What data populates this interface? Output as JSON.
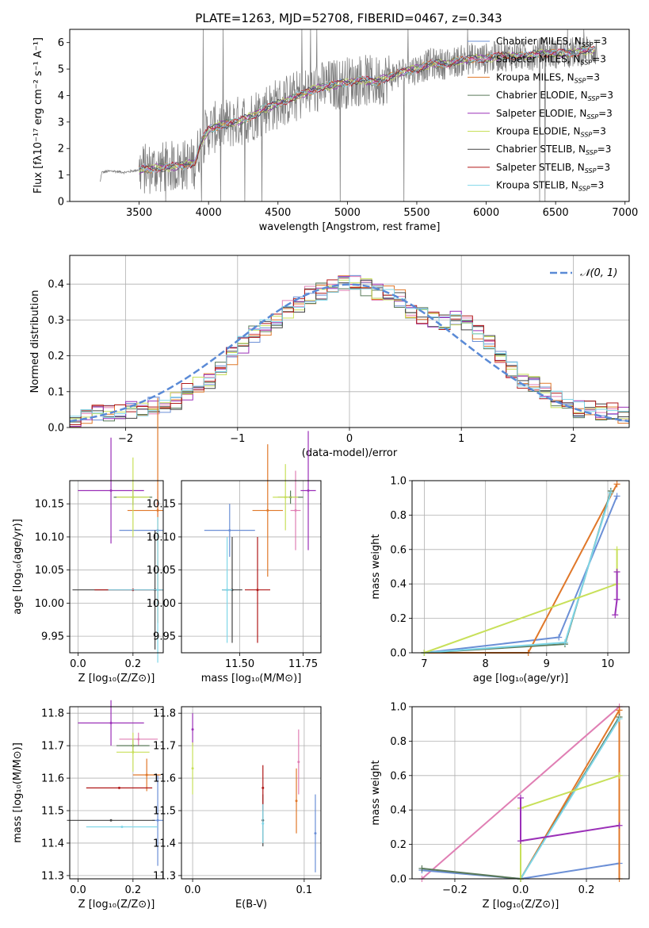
{
  "colors": {
    "Chabrier MILES": "#6b8fd6",
    "Salpeter MILES": "#e07fb4",
    "Kroupa MILES": "#e0782a",
    "Chabrier ELODIE": "#5a7a5a",
    "Salpeter ELODIE": "#9b30b8",
    "Kroupa ELODIE": "#c8e05a",
    "Chabrier STELIB": "#444444",
    "Salpeter STELIB": "#b01818",
    "Kroupa STELIB": "#7fd6e8",
    "data": "#808080",
    "normal": "#5a8ad6"
  },
  "chart_data": [
    {
      "type": "line",
      "title": "PLATE=1263, MJD=52708, FIBERID=0467, z=0.343",
      "xlabel": "wavelength [Angstrom, rest frame]",
      "ylabel": "Flux [fλ10⁻¹⁷ erg cm⁻² s⁻¹ A⁻¹]",
      "xlim": [
        3000,
        7030
      ],
      "ylim": [
        0,
        6.5
      ],
      "xticks": [
        "3500",
        "4000",
        "4500",
        "5000",
        "5500",
        "6000",
        "6500",
        "7000"
      ],
      "yticks": [
        "0",
        "1",
        "2",
        "3",
        "4",
        "5",
        "6"
      ],
      "legend": "top-right",
      "series": [
        {
          "name": "Chabrier MILES, N",
          "sub": "SSP",
          "eq": "=3"
        },
        {
          "name": "Salpeter MILES, N",
          "sub": "SSP",
          "eq": "=3"
        },
        {
          "name": "Kroupa MILES, N",
          "sub": "SSP",
          "eq": "=3"
        },
        {
          "name": "Chabrier ELODIE, N",
          "sub": "SSP",
          "eq": "=3"
        },
        {
          "name": "Salpeter ELODIE, N",
          "sub": "SSP",
          "eq": "=3"
        },
        {
          "name": "Kroupa ELODIE, N",
          "sub": "SSP",
          "eq": "=3"
        },
        {
          "name": "Chabrier STELIB, N",
          "sub": "SSP",
          "eq": "=3"
        },
        {
          "name": "Salpeter STELIB, N",
          "sub": "SSP",
          "eq": "=3"
        },
        {
          "name": "Kroupa STELIB, N",
          "sub": "SSP",
          "eq": "=3"
        }
      ],
      "model_points": [
        [
          3200,
          0
        ],
        [
          3230,
          1.1
        ],
        [
          3300,
          1.15
        ],
        [
          3400,
          1.1
        ],
        [
          3500,
          1.2
        ],
        [
          3600,
          1.25
        ],
        [
          3700,
          1.3
        ],
        [
          3800,
          1.35
        ],
        [
          3900,
          1.45
        ],
        [
          3950,
          2.3
        ],
        [
          4000,
          2.7
        ],
        [
          4100,
          2.9
        ],
        [
          4200,
          3.0
        ],
        [
          4300,
          3.2
        ],
        [
          4400,
          3.5
        ],
        [
          4500,
          3.7
        ],
        [
          4600,
          3.9
        ],
        [
          4700,
          4.1
        ],
        [
          4800,
          4.3
        ],
        [
          4900,
          4.4
        ],
        [
          5000,
          4.5
        ],
        [
          5100,
          4.6
        ],
        [
          5200,
          4.5
        ],
        [
          5300,
          4.7
        ],
        [
          5400,
          4.9
        ],
        [
          5500,
          5.0
        ],
        [
          5600,
          5.2
        ],
        [
          5700,
          5.2
        ],
        [
          5800,
          5.3
        ],
        [
          5900,
          5.4
        ],
        [
          6000,
          5.4
        ],
        [
          6100,
          5.5
        ],
        [
          6200,
          5.5
        ],
        [
          6300,
          5.5
        ],
        [
          6400,
          5.6
        ],
        [
          6500,
          5.6
        ],
        [
          6600,
          5.6
        ],
        [
          6700,
          5.7
        ],
        [
          6780,
          5.7
        ]
      ],
      "data_range": [
        3220,
        6800
      ]
    },
    {
      "type": "line",
      "xlabel": "(data-model)/error",
      "ylabel": "Normed distribution",
      "xlim": [
        -2.5,
        2.5
      ],
      "ylim": [
        0,
        0.48
      ],
      "xticks": [
        "−2",
        "−1",
        "0",
        "1",
        "2"
      ],
      "yticks": [
        "0.0",
        "0.1",
        "0.2",
        "0.3",
        "0.4"
      ],
      "legend": "top-right",
      "legend_label": "𝒩(0, 1)",
      "bins": [
        -2.5,
        -2.4,
        -2.3,
        -2.2,
        -2.1,
        -2.0,
        -1.9,
        -1.8,
        -1.7,
        -1.6,
        -1.5,
        -1.4,
        -1.3,
        -1.2,
        -1.1,
        -1.0,
        -0.9,
        -0.8,
        -0.7,
        -0.6,
        -0.5,
        -0.4,
        -0.3,
        -0.2,
        -0.1,
        0.0,
        0.1,
        0.2,
        0.3,
        0.4,
        0.5,
        0.6,
        0.7,
        0.8,
        0.9,
        1.0,
        1.1,
        1.2,
        1.3,
        1.4,
        1.5,
        1.6,
        1.7,
        1.8,
        1.9,
        2.0,
        2.1,
        2.2,
        2.3,
        2.4,
        2.5
      ],
      "hist_values": [
        0.025,
        0.03,
        0.04,
        0.04,
        0.045,
        0.05,
        0.055,
        0.06,
        0.065,
        0.075,
        0.1,
        0.12,
        0.13,
        0.17,
        0.2,
        0.23,
        0.26,
        0.28,
        0.3,
        0.33,
        0.34,
        0.37,
        0.38,
        0.39,
        0.4,
        0.4,
        0.39,
        0.38,
        0.37,
        0.36,
        0.33,
        0.31,
        0.3,
        0.29,
        0.3,
        0.29,
        0.26,
        0.24,
        0.2,
        0.16,
        0.13,
        0.12,
        0.1,
        0.08,
        0.07,
        0.05,
        0.05,
        0.045,
        0.045,
        0.035
      ]
    },
    {
      "type": "scatter",
      "xlabel": "Z [log₁₀(Z/Z⊙)]",
      "ylabel": "age  [log₁₀(age/yr)]",
      "xlim": [
        -0.03,
        0.31
      ],
      "ylim": [
        9.925,
        10.185
      ],
      "xticks": [
        "0.0",
        "0.2"
      ],
      "yticks": [
        "9.95",
        "10.00",
        "10.05",
        "10.10",
        "10.15"
      ],
      "points": [
        {
          "s": "Chabrier MILES",
          "x": 0.29,
          "y": 10.11,
          "xe": 0.14,
          "ye": 0.0
        },
        {
          "s": "Salpeter MILES",
          "x": 0.29,
          "y": 10.15,
          "xe": 0.0,
          "ye": 0.02
        },
        {
          "s": "Kroupa MILES",
          "x": 0.29,
          "y": 10.14,
          "xe": 0.11,
          "ye": 0.17
        },
        {
          "s": "Chabrier ELODIE",
          "x": 0.2,
          "y": 10.16,
          "xe": 0.07,
          "ye": 0.012
        },
        {
          "s": "Salpeter ELODIE",
          "x": 0.12,
          "y": 10.17,
          "xe": 0.12,
          "ye": 0.08
        },
        {
          "s": "Kroupa ELODIE",
          "x": 0.2,
          "y": 10.16,
          "xe": 0.06,
          "ye": 0.06
        },
        {
          "s": "Chabrier STELIB",
          "x": 0.28,
          "y": 10.02,
          "xe": 0.3,
          "ye": 0.09
        },
        {
          "s": "Salpeter STELIB",
          "x": 0.2,
          "y": 10.02,
          "xe": 0.14,
          "ye": 0.0
        },
        {
          "s": "Kroupa STELIB",
          "x": 0.29,
          "y": 10.02,
          "xe": 0.18,
          "ye": 0.11
        }
      ]
    },
    {
      "type": "scatter",
      "xlabel": "mass [log₁₀(M/M⊙)]",
      "xlim": [
        11.27,
        11.82
      ],
      "ylim": [
        9.925,
        10.185
      ],
      "xticks": [
        "11.50",
        "11.75"
      ],
      "yticks": [
        "9.95",
        "10.00",
        "10.05",
        "10.10",
        "10.15"
      ],
      "points": [
        {
          "s": "Chabrier MILES",
          "x": 11.46,
          "y": 10.11,
          "xe": 0.1,
          "ye": 0.04
        },
        {
          "s": "Salpeter MILES",
          "x": 11.72,
          "y": 10.14,
          "xe": 0.02,
          "ye": 0.06
        },
        {
          "s": "Kroupa MILES",
          "x": 11.61,
          "y": 10.14,
          "xe": 0.06,
          "ye": 0.1
        },
        {
          "s": "Chabrier ELODIE",
          "x": 11.7,
          "y": 10.16,
          "xe": 0.05,
          "ye": 0.01
        },
        {
          "s": "Salpeter ELODIE",
          "x": 11.77,
          "y": 10.17,
          "xe": 0.03,
          "ye": 0.09
        },
        {
          "s": "Kroupa ELODIE",
          "x": 11.68,
          "y": 10.16,
          "xe": 0.05,
          "ye": 0.05
        },
        {
          "s": "Chabrier STELIB",
          "x": 11.47,
          "y": 10.02,
          "xe": 0.04,
          "ye": 0.08
        },
        {
          "s": "Salpeter STELIB",
          "x": 11.57,
          "y": 10.02,
          "xe": 0.05,
          "ye": 0.08
        },
        {
          "s": "Kroupa STELIB",
          "x": 11.45,
          "y": 10.02,
          "xe": 0.02,
          "ye": 0.08
        }
      ]
    },
    {
      "type": "line",
      "xlabel": "age  [log₁₀(age/yr)]",
      "ylabel": "mass weight",
      "xlim": [
        6.8,
        10.35
      ],
      "ylim": [
        0,
        1
      ],
      "xticks": [
        "7",
        "8",
        "9",
        "10"
      ],
      "yticks": [
        "0.0",
        "0.2",
        "0.4",
        "0.6",
        "0.8",
        "1.0"
      ],
      "series": [
        {
          "s": "Chabrier MILES",
          "x": [
            7.0,
            9.2,
            10.15
          ],
          "y": [
            0.0,
            0.09,
            0.91
          ]
        },
        {
          "s": "Kroupa MILES",
          "x": [
            7.0,
            8.7,
            10.15
          ],
          "y": [
            0.0,
            0.0,
            0.98
          ]
        },
        {
          "s": "Chabrier ELODIE",
          "x": [
            7.0,
            9.3,
            10.05
          ],
          "y": [
            0.0,
            0.05,
            0.94
          ]
        },
        {
          "s": "Kroupa STELIB",
          "x": [
            7.0,
            9.3,
            10.05
          ],
          "y": [
            0.0,
            0.06,
            0.93
          ]
        },
        {
          "s": "Kroupa ELODIE",
          "x": [
            7.0,
            10.15,
            10.15
          ],
          "y": [
            0.0,
            0.4,
            0.6
          ]
        },
        {
          "s": "Salpeter ELODIE",
          "x": [
            10.12,
            10.15,
            10.15
          ],
          "y": [
            0.22,
            0.31,
            0.47
          ]
        }
      ]
    },
    {
      "type": "scatter",
      "xlabel": "Z [log₁₀(Z/Z⊙)]",
      "ylabel": "mass [log₁₀(M/M⊙)]",
      "xlim": [
        -0.03,
        0.31
      ],
      "ylim": [
        11.29,
        11.82
      ],
      "xticks": [
        "0.0",
        "0.2"
      ],
      "yticks": [
        "11.3",
        "11.4",
        "11.5",
        "11.6",
        "11.7",
        "11.8"
      ],
      "points": [
        {
          "s": "Chabrier MILES",
          "x": 0.29,
          "y": 11.47,
          "xe": 0.02,
          "ye": 0.14
        },
        {
          "s": "Salpeter MILES",
          "x": 0.22,
          "y": 11.72,
          "xe": 0.07,
          "ye": 0.02
        },
        {
          "s": "Kroupa MILES",
          "x": 0.25,
          "y": 11.61,
          "xe": 0.05,
          "ye": 0.05
        },
        {
          "s": "Chabrier ELODIE",
          "x": 0.2,
          "y": 11.7,
          "xe": 0.06,
          "ye": 0.02
        },
        {
          "s": "Salpeter ELODIE",
          "x": 0.12,
          "y": 11.77,
          "xe": 0.12,
          "ye": 0.07
        },
        {
          "s": "Kroupa ELODIE",
          "x": 0.2,
          "y": 11.68,
          "xe": 0.06,
          "ye": 0.06
        },
        {
          "s": "Chabrier STELIB",
          "x": 0.12,
          "y": 11.47,
          "xe": 0.16,
          "ye": 0.0
        },
        {
          "s": "Salpeter STELIB",
          "x": 0.15,
          "y": 11.57,
          "xe": 0.12,
          "ye": 0.0
        },
        {
          "s": "Kroupa STELIB",
          "x": 0.16,
          "y": 11.45,
          "xe": 0.13,
          "ye": 0.0
        }
      ]
    },
    {
      "type": "scatter",
      "xlabel": "E(B-V)",
      "xlim": [
        -0.01,
        0.115
      ],
      "ylim": [
        11.29,
        11.82
      ],
      "xticks": [
        "0.0",
        "0.1"
      ],
      "yticks": [
        "11.3",
        "11.4",
        "11.5",
        "11.6",
        "11.7",
        "11.8"
      ],
      "points": [
        {
          "s": "Chabrier MILES",
          "x": 0.11,
          "y": 11.43,
          "ye": 0.12
        },
        {
          "s": "Salpeter MILES",
          "x": 0.095,
          "y": 11.65,
          "ye": 0.1
        },
        {
          "s": "Kroupa MILES",
          "x": 0.093,
          "y": 11.53,
          "ye": 0.1
        },
        {
          "s": "Salpeter ELODIE",
          "x": 0.0,
          "y": 11.75,
          "ye": 0.05
        },
        {
          "s": "Kroupa ELODIE",
          "x": 0.0,
          "y": 11.63,
          "ye": 0.08
        },
        {
          "s": "Chabrier STELIB",
          "x": 0.063,
          "y": 11.47,
          "ye": 0.08
        },
        {
          "s": "Salpeter STELIB",
          "x": 0.063,
          "y": 11.57,
          "ye": 0.07
        },
        {
          "s": "Kroupa STELIB",
          "x": 0.063,
          "y": 11.46,
          "ye": 0.06
        }
      ]
    },
    {
      "type": "line",
      "xlabel": "Z [log₁₀(Z/Z⊙)]",
      "ylabel": "mass weight",
      "xlim": [
        -0.33,
        0.33
      ],
      "ylim": [
        0,
        1
      ],
      "xticks": [
        "−0.2",
        "0.0",
        "0.2"
      ],
      "yticks": [
        "0.0",
        "0.2",
        "0.4",
        "0.6",
        "0.8",
        "1.0"
      ],
      "series": [
        {
          "s": "Salpeter MILES",
          "x": [
            -0.3,
            0.3
          ],
          "y": [
            0.0,
            1.0
          ]
        },
        {
          "s": "Chabrier MILES",
          "x": [
            -0.3,
            0.0,
            0.3
          ],
          "y": [
            0.05,
            0.0,
            0.09
          ]
        },
        {
          "s": "Kroupa MILES",
          "x": [
            0.0,
            0.3,
            0.3
          ],
          "y": [
            0.0,
            0.98,
            0.0
          ]
        },
        {
          "s": "Chabrier ELODIE",
          "x": [
            -0.3,
            0.0,
            0.3
          ],
          "y": [
            0.06,
            0.0,
            0.94
          ]
        },
        {
          "s": "Kroupa STELIB",
          "x": [
            0.0,
            0.3
          ],
          "y": [
            0.0,
            0.93
          ]
        },
        {
          "s": "Kroupa ELODIE",
          "x": [
            0.0,
            0.0,
            0.3
          ],
          "y": [
            0.0,
            0.41,
            0.6
          ]
        },
        {
          "s": "Salpeter ELODIE",
          "x": [
            0.0,
            0.0,
            0.3
          ],
          "y": [
            0.47,
            0.22,
            0.31
          ]
        }
      ]
    }
  ]
}
